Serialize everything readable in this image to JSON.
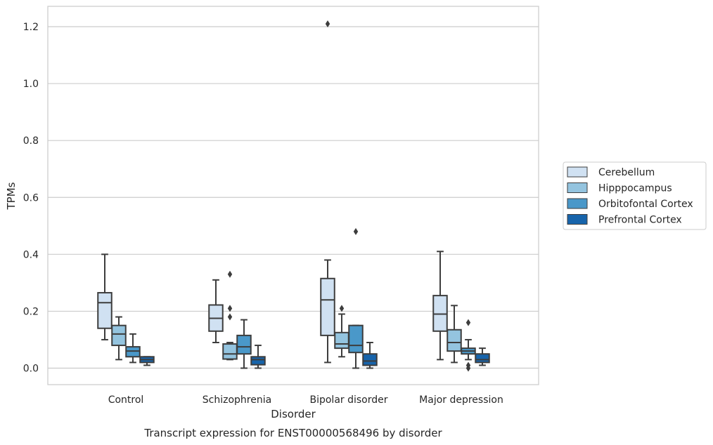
{
  "chart_data": {
    "type": "box",
    "caption": "Transcript expression for ENST00000568496 by disorder",
    "xlabel": "Disorder",
    "ylabel": "TPMs",
    "ylim": [
      -0.06,
      1.27
    ],
    "yticks": [
      0.0,
      0.2,
      0.4,
      0.6,
      0.8,
      1.0,
      1.2
    ],
    "ytick_labels": [
      "0.0",
      "0.2",
      "0.4",
      "0.6",
      "0.8",
      "1.0",
      "1.2"
    ],
    "grid": "horizontal",
    "legend_position": "right",
    "categories": [
      "Control",
      "Schizophrenia",
      "Bipolar disorder",
      "Major depression"
    ],
    "series": [
      {
        "name": "Cerebellum",
        "color": "#d0e1f2",
        "boxes": [
          {
            "whislo": 0.1,
            "q1": 0.14,
            "med": 0.23,
            "q3": 0.265,
            "whishi": 0.4,
            "fliers": []
          },
          {
            "whislo": 0.09,
            "q1": 0.13,
            "med": 0.175,
            "q3": 0.222,
            "whishi": 0.31,
            "fliers": []
          },
          {
            "whislo": 0.02,
            "q1": 0.115,
            "med": 0.24,
            "q3": 0.315,
            "whishi": 0.38,
            "fliers": [
              1.21
            ]
          },
          {
            "whislo": 0.03,
            "q1": 0.13,
            "med": 0.19,
            "q3": 0.255,
            "whishi": 0.41,
            "fliers": []
          }
        ]
      },
      {
        "name": "Hipppocampus",
        "color": "#94c4df",
        "boxes": [
          {
            "whislo": 0.03,
            "q1": 0.08,
            "med": 0.12,
            "q3": 0.15,
            "whishi": 0.18,
            "fliers": []
          },
          {
            "whislo": 0.03,
            "q1": 0.032,
            "med": 0.05,
            "q3": 0.085,
            "whishi": 0.09,
            "fliers": [
              0.33,
              0.21,
              0.18
            ]
          },
          {
            "whislo": 0.04,
            "q1": 0.07,
            "med": 0.085,
            "q3": 0.125,
            "whishi": 0.19,
            "fliers": [
              0.21
            ]
          },
          {
            "whislo": 0.02,
            "q1": 0.06,
            "med": 0.09,
            "q3": 0.135,
            "whishi": 0.22,
            "fliers": []
          }
        ]
      },
      {
        "name": "Orbitofontal Cortex",
        "color": "#4a98c9",
        "boxes": [
          {
            "whislo": 0.02,
            "q1": 0.04,
            "med": 0.06,
            "q3": 0.075,
            "whishi": 0.12,
            "fliers": []
          },
          {
            "whislo": 0.0,
            "q1": 0.05,
            "med": 0.075,
            "q3": 0.115,
            "whishi": 0.17,
            "fliers": []
          },
          {
            "whislo": 0.0,
            "q1": 0.055,
            "med": 0.08,
            "q3": 0.15,
            "whishi": 0.15,
            "fliers": [
              0.48
            ]
          },
          {
            "whislo": 0.03,
            "q1": 0.05,
            "med": 0.06,
            "q3": 0.07,
            "whishi": 0.1,
            "fliers": [
              0.16,
              0.01,
              0.0
            ]
          }
        ]
      },
      {
        "name": "Prefrontal Cortex",
        "color": "#1764ab",
        "boxes": [
          {
            "whislo": 0.01,
            "q1": 0.02,
            "med": 0.03,
            "q3": 0.04,
            "whishi": 0.04,
            "fliers": []
          },
          {
            "whislo": 0.0,
            "q1": 0.012,
            "med": 0.03,
            "q3": 0.04,
            "whishi": 0.08,
            "fliers": []
          },
          {
            "whislo": 0.0,
            "q1": 0.01,
            "med": 0.025,
            "q3": 0.05,
            "whishi": 0.09,
            "fliers": []
          },
          {
            "whislo": 0.01,
            "q1": 0.02,
            "med": 0.03,
            "q3": 0.05,
            "whishi": 0.07,
            "fliers": []
          }
        ]
      }
    ]
  }
}
